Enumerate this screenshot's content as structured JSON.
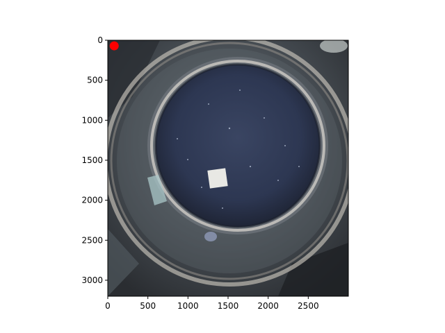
{
  "chart_data": {
    "type": "scatter",
    "title": "",
    "xlabel": "",
    "ylabel": "",
    "xlim": [
      0,
      3000
    ],
    "ylim": [
      3200,
      0
    ],
    "x_ticks": [
      0,
      500,
      1000,
      1500,
      2000,
      2500
    ],
    "y_ticks": [
      0,
      500,
      1000,
      1500,
      2000,
      2500,
      3000
    ],
    "x_tick_labels": [
      "0",
      "500",
      "1000",
      "1500",
      "2000",
      "2500"
    ],
    "y_tick_labels": [
      "0",
      "500",
      "1000",
      "1500",
      "2000",
      "2500",
      "3000"
    ],
    "grid": false,
    "legend": "none",
    "series": [
      {
        "color": "#ff0000",
        "points": [
          {
            "x": 80,
            "y": 70
          }
        ]
      }
    ],
    "background_image": "petri-dish-photo"
  },
  "colors": {
    "marker": "#ff0000",
    "axes": "#000000",
    "dish_medium": "#2f3a55",
    "backdrop": "#3b4147"
  }
}
